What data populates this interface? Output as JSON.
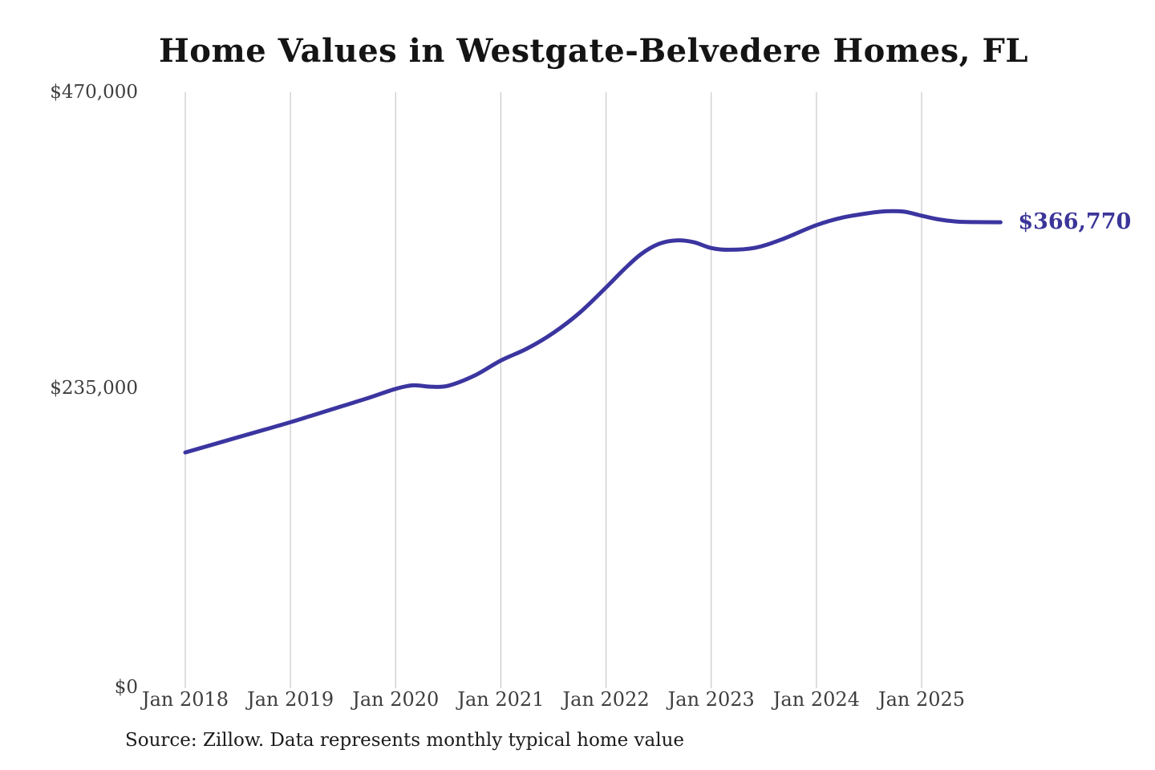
{
  "colors": {
    "line": "#3b35a0",
    "end_label": "#3b3599",
    "grid": "#c9c9c9",
    "tick_text": "#3e3e3e",
    "title_text": "#141414",
    "source_text": "#1b1b1b",
    "background": "#ffffff"
  },
  "page": {
    "source": "Source: Zillow. Data represents monthly typical home value"
  },
  "chart_data": {
    "type": "line",
    "title": "Home Values in Westgate-Belvedere Homes, FL",
    "xlabel": "",
    "ylabel": "",
    "x_unit": "months since Jan 2018",
    "ylim": [
      0,
      470000
    ],
    "grid": "vertical-only",
    "legend": "none",
    "series_name": "Typical home value",
    "points": [
      [
        0,
        184000
      ],
      [
        3,
        190000
      ],
      [
        6,
        196000
      ],
      [
        9,
        202000
      ],
      [
        12,
        208000
      ],
      [
        15,
        214500
      ],
      [
        18,
        221000
      ],
      [
        21,
        227500
      ],
      [
        24,
        234500
      ],
      [
        26,
        237300
      ],
      [
        28,
        236200
      ],
      [
        30,
        237000
      ],
      [
        33,
        245000
      ],
      [
        36,
        257000
      ],
      [
        39,
        266500
      ],
      [
        42,
        279000
      ],
      [
        45,
        295000
      ],
      [
        48,
        315000
      ],
      [
        50,
        329000
      ],
      [
        52,
        341500
      ],
      [
        54,
        349500
      ],
      [
        56,
        352400
      ],
      [
        58,
        351000
      ],
      [
        60,
        346300
      ],
      [
        62,
        344900
      ],
      [
        65,
        346500
      ],
      [
        68,
        353000
      ],
      [
        72,
        364500
      ],
      [
        75,
        370500
      ],
      [
        78,
        374000
      ],
      [
        80,
        375500
      ],
      [
        82,
        375200
      ],
      [
        84,
        372000
      ],
      [
        86,
        369000
      ],
      [
        88,
        367300
      ],
      [
        90,
        366900
      ],
      [
        93,
        366770
      ]
    ],
    "x_ticks": [
      {
        "month": 0,
        "label": "Jan 2018"
      },
      {
        "month": 12,
        "label": "Jan 2019"
      },
      {
        "month": 24,
        "label": "Jan 2020"
      },
      {
        "month": 36,
        "label": "Jan 2021"
      },
      {
        "month": 48,
        "label": "Jan 2022"
      },
      {
        "month": 60,
        "label": "Jan 2023"
      },
      {
        "month": 72,
        "label": "Jan 2024"
      },
      {
        "month": 84,
        "label": "Jan 2025"
      }
    ],
    "y_ticks": [
      {
        "value": 470000,
        "label": "$470,000"
      },
      {
        "value": 235000,
        "label": "$235,000"
      },
      {
        "value": 0,
        "label": "$0"
      }
    ],
    "end_annotation": {
      "label": "$366,770",
      "value": 366770
    }
  }
}
